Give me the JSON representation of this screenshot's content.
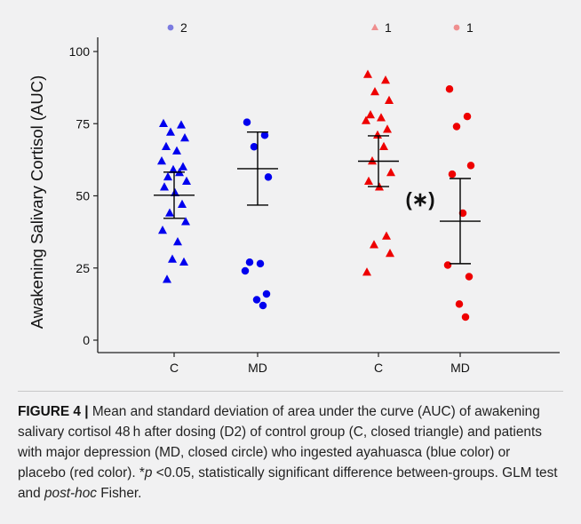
{
  "caption": {
    "figure_label": "FIGURE 4 |",
    "seg1": " Mean and standard deviation of area under the curve (AUC) of awakening salivary cortisol 48 h after dosing (D2) of control group (C, closed triangle) and patients with major depression (MD, closed circle) who ingested ayahuasca (blue color) or placebo (red color). *",
    "p_italic": "p",
    "seg2": " <0.05, statistically significant difference between-groups. GLM test and ",
    "posthoc_italic": "post-hoc",
    "seg3": " Fisher."
  },
  "colors": {
    "ayahuasca": "#0000ee",
    "placebo": "#ee0000",
    "ayahuasca_light": "#7b7be0",
    "placebo_light": "#ef8f8f"
  },
  "chart_data": {
    "type": "scatter",
    "ylabel": "Awakening Salivary Cortisol (AUC)",
    "xlabel": "",
    "ylim": [
      0,
      105
    ],
    "yticks": [
      0,
      25,
      50,
      75,
      100
    ],
    "categories": [
      "C",
      "MD",
      "C",
      "MD"
    ],
    "significance_label": "(∗)",
    "groups": [
      {
        "category": "C",
        "treatment": "ayahuasca",
        "marker": "triangle",
        "values": [
          75,
          74.5,
          72,
          70,
          67,
          65.5,
          62,
          60,
          59,
          58,
          56.5,
          55,
          53,
          51,
          47,
          44,
          41,
          38,
          34,
          28,
          27,
          21
        ],
        "mean": 50.2,
        "sd_low": 42.2,
        "sd_high": 58.2,
        "offscale": {
          "count": 2,
          "marker": "circle",
          "label": "2"
        }
      },
      {
        "category": "MD",
        "treatment": "ayahuasca",
        "marker": "circle",
        "values": [
          75.5,
          71,
          67,
          56.5,
          27,
          26.5,
          24,
          16,
          14,
          12
        ],
        "mean": 59.4,
        "sd_low": 46.8,
        "sd_high": 72.1
      },
      {
        "category": "C",
        "treatment": "placebo",
        "marker": "triangle",
        "values": [
          92,
          90,
          86,
          83,
          78,
          77,
          76,
          73,
          71,
          67,
          62,
          58,
          55,
          53,
          36,
          33,
          30,
          23.5
        ],
        "mean": 62,
        "sd_low": 53.2,
        "sd_high": 70.8,
        "offscale": {
          "count": 1,
          "marker": "triangle",
          "label": "1"
        }
      },
      {
        "category": "MD",
        "treatment": "placebo",
        "marker": "circle",
        "values": [
          87,
          77.5,
          74,
          60.5,
          57.5,
          44,
          26,
          22,
          12.5,
          8
        ],
        "mean": 41.2,
        "sd_low": 26.5,
        "sd_high": 56,
        "offscale": {
          "count": 1,
          "marker": "circle",
          "label": "1"
        }
      }
    ]
  }
}
